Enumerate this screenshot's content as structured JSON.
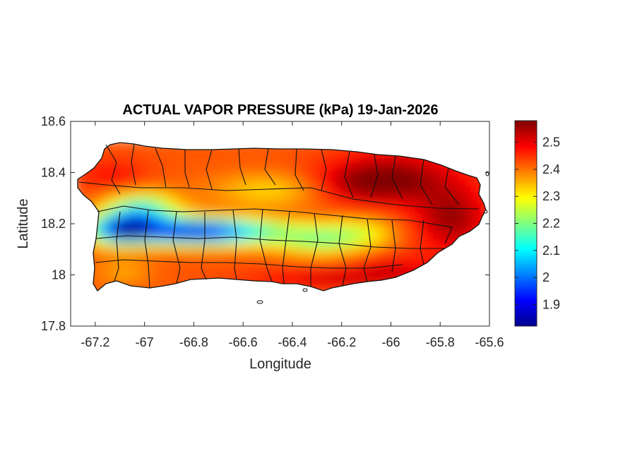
{
  "chart_data": {
    "type": "heatmap",
    "title": "ACTUAL VAPOR PRESSURE (kPa) 19-Jan-2026",
    "xlabel": "Longitude",
    "ylabel": "Latitude",
    "xlim": [
      -67.3,
      -65.6
    ],
    "ylim": [
      17.8,
      18.6
    ],
    "x_ticks": [
      -67.2,
      -67,
      -66.8,
      -66.6,
      -66.4,
      -66.2,
      -66,
      -65.8,
      -65.6
    ],
    "x_tick_labels": [
      "-67.2",
      "-67",
      "-66.8",
      "-66.6",
      "-66.4",
      "-66.2",
      "-66",
      "-65.8",
      "-65.6"
    ],
    "y_ticks": [
      18.6,
      18.4,
      18.2,
      18,
      17.8
    ],
    "y_tick_labels": [
      "18.6",
      "18.4",
      "18.2",
      "18",
      "17.8"
    ],
    "colorbar": {
      "colormap": "jet",
      "range": [
        1.82,
        2.58
      ],
      "ticks": [
        2.5,
        2.4,
        2.3,
        2.2,
        2.1,
        2,
        1.9
      ],
      "tick_labels": [
        "2.5",
        "2.4",
        "2.3",
        "2.2",
        "2.1",
        "2",
        "1.9"
      ]
    },
    "grid": false,
    "region_summary": [
      {
        "region": "northwest coast",
        "value": 2.45
      },
      {
        "region": "north-central coast",
        "value": 2.4
      },
      {
        "region": "northeast (east of -66.3)",
        "value": 2.52
      },
      {
        "region": "east coast",
        "value": 2.55
      },
      {
        "region": "central mountains (lat ~18.17)",
        "value": 1.95
      },
      {
        "region": "west-central interior",
        "value": 2.05
      },
      {
        "region": "south coast",
        "value": 2.42
      },
      {
        "region": "southwest coast",
        "value": 2.35
      }
    ]
  }
}
